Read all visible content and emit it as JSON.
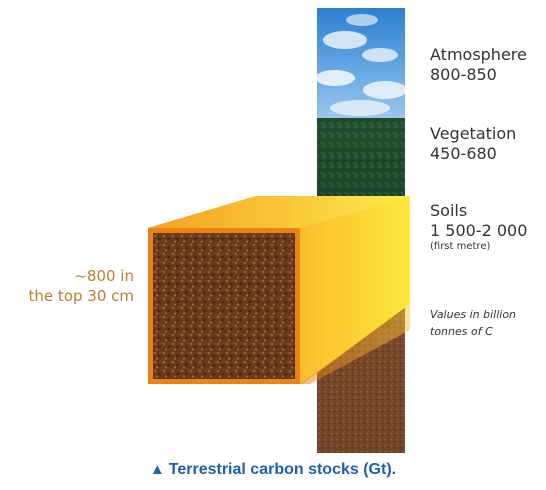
{
  "labels": {
    "atmosphere": {
      "name": "Atmosphere",
      "value": "800-850"
    },
    "vegetation": {
      "name": "Vegetation",
      "value": "450-680"
    },
    "soils": {
      "name": "Soils",
      "value": "1 500-2 000",
      "note": "(first metre)"
    }
  },
  "units_note": "Values in billion tonnes of C",
  "topsoil": {
    "line1": "~800 in",
    "line2": "the top 30 cm"
  },
  "caption": {
    "marker": "▲",
    "text": "Terrestrial carbon stocks (Gt)."
  },
  "colors": {
    "label_text": "#333333",
    "topsoil_text": "#b8812a",
    "caption_blue": "#1d5fb0",
    "sky": "#3f8fd6",
    "forest": "#1f4a2c",
    "soil": "#6a3a1e",
    "beam_start": "#f39a1c",
    "beam_end": "#fde73a"
  }
}
